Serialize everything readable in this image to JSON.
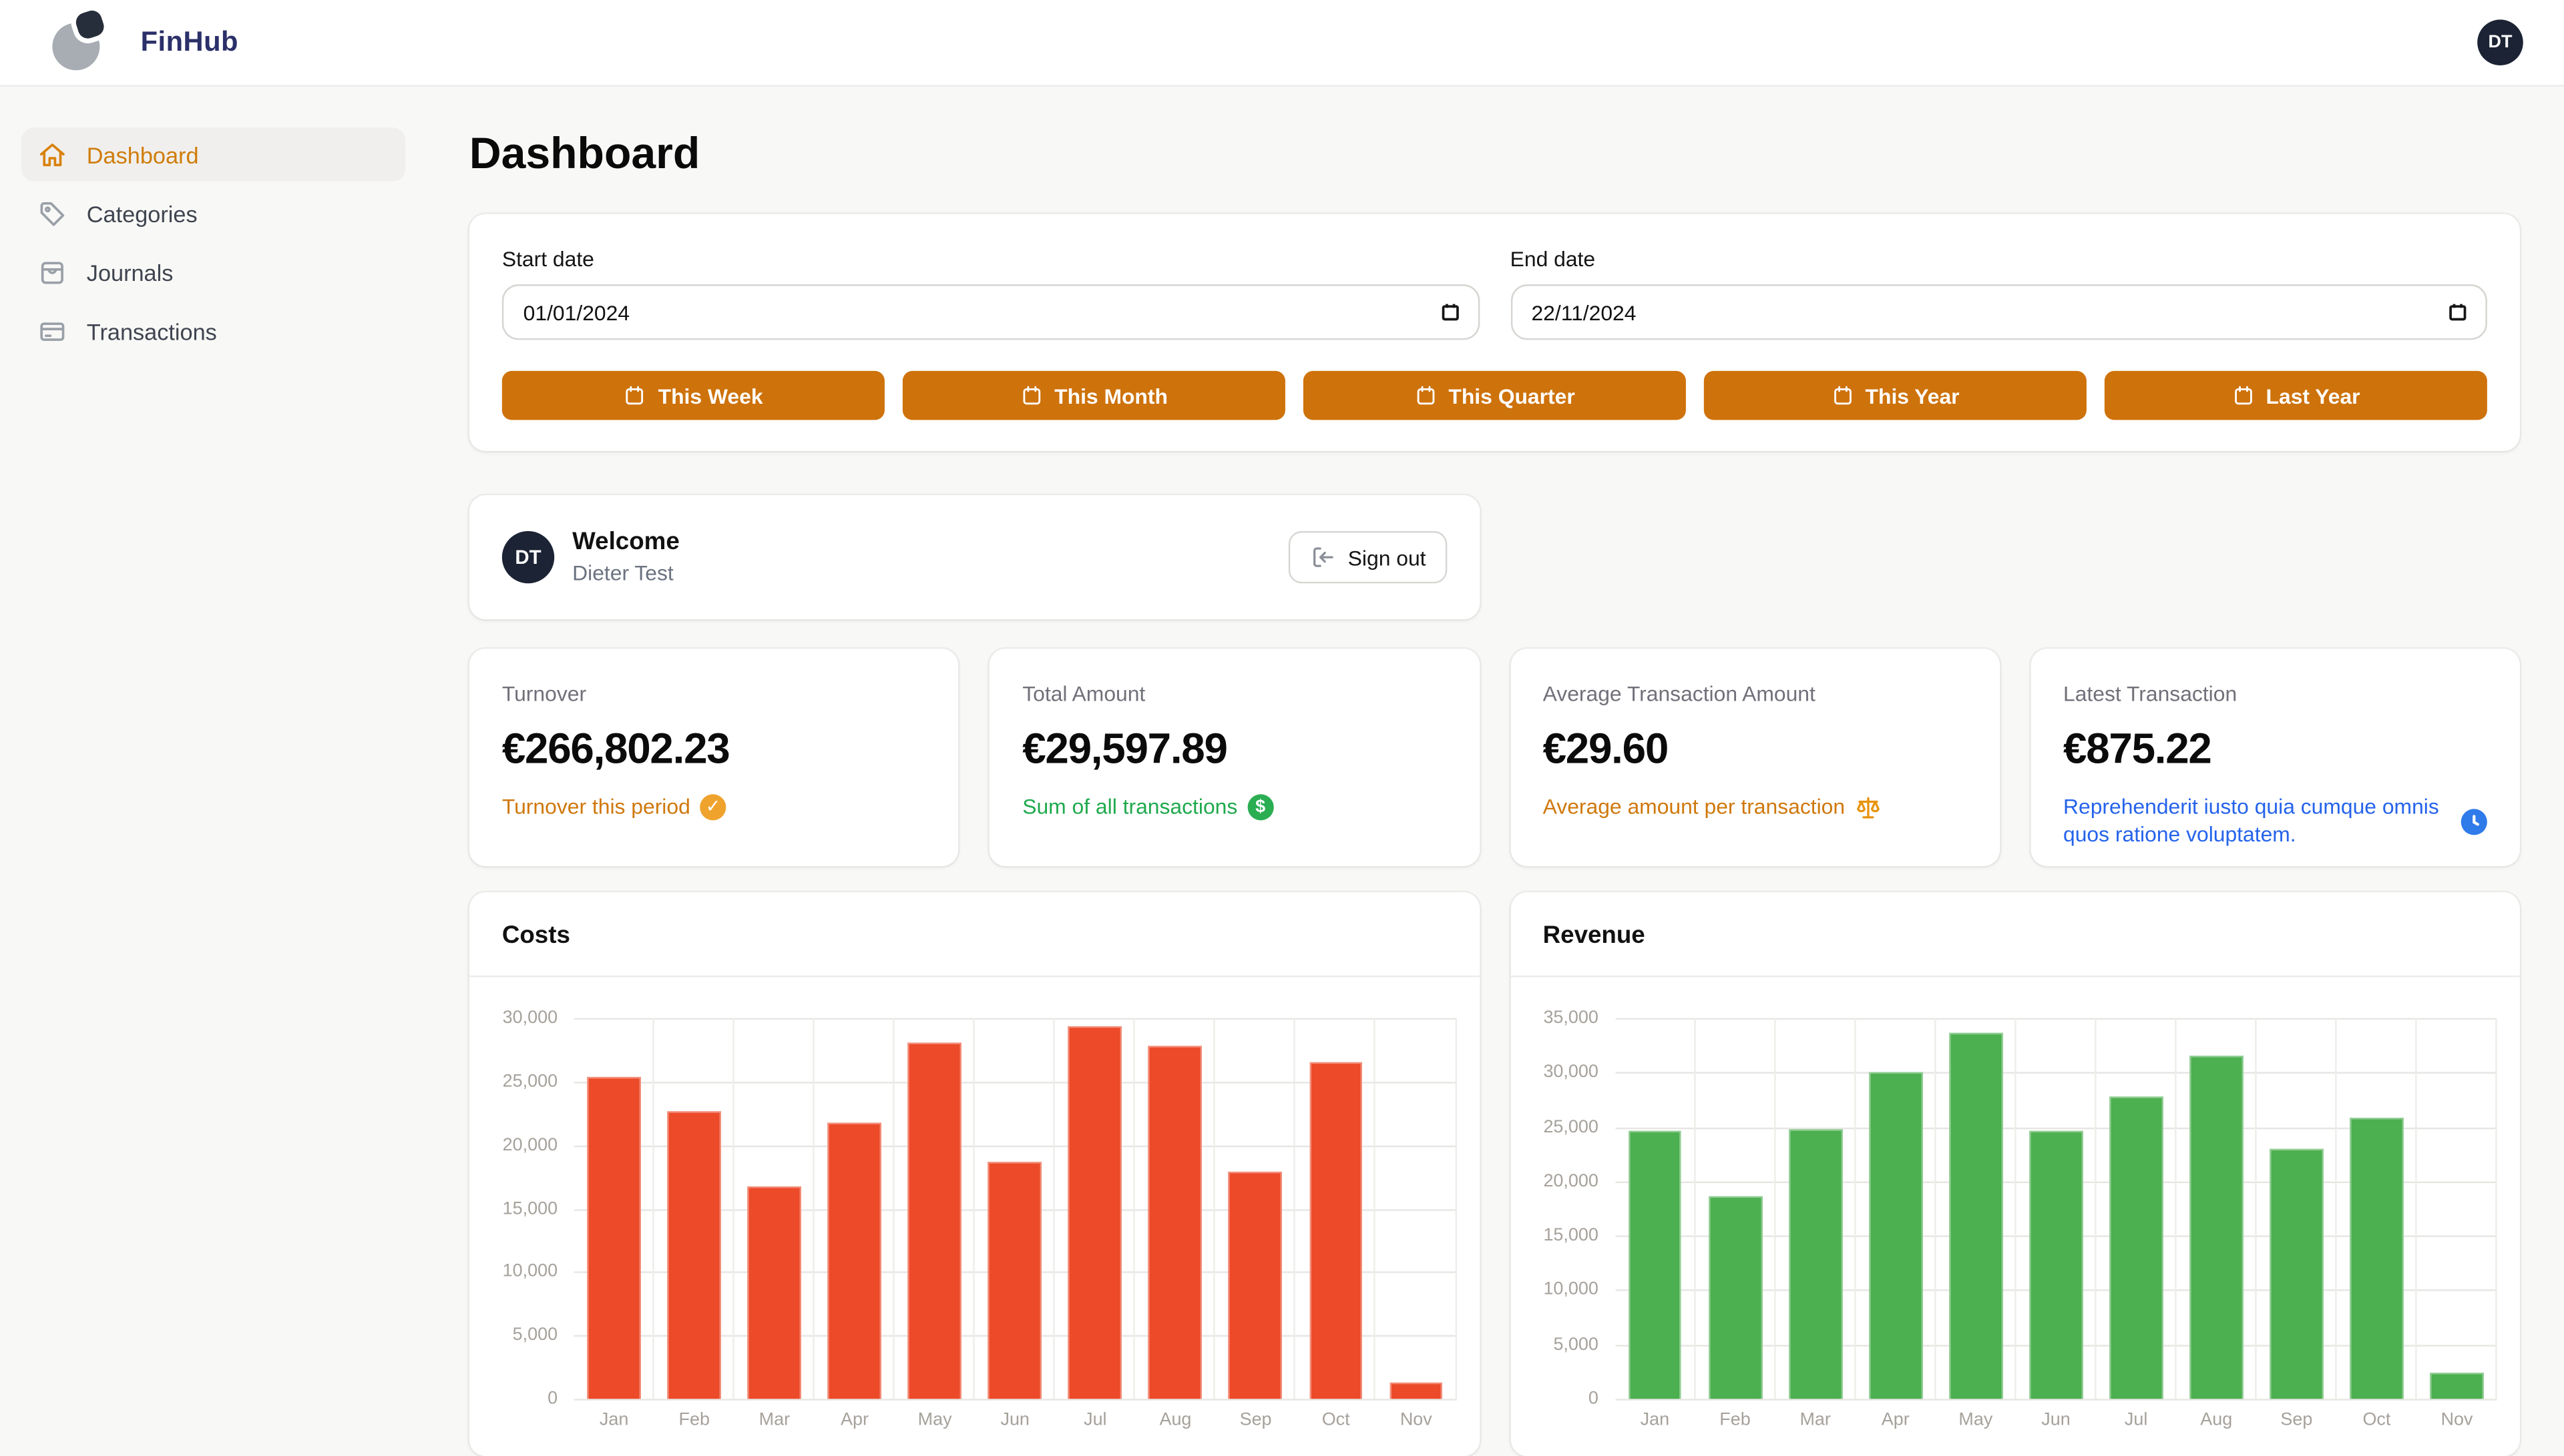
{
  "header": {
    "brand": "FinHub",
    "avatar_initials": "DT"
  },
  "sidebar": {
    "items": [
      {
        "label": "Dashboard",
        "icon": "home",
        "active": true
      },
      {
        "label": "Categories",
        "icon": "tag",
        "active": false
      },
      {
        "label": "Journals",
        "icon": "journal",
        "active": false
      },
      {
        "label": "Transactions",
        "icon": "credit-card",
        "active": false
      }
    ]
  },
  "page": {
    "title": "Dashboard"
  },
  "filters": {
    "start_label": "Start date",
    "start_value": "01/01/2024",
    "end_label": "End date",
    "end_value": "22/11/2024",
    "quick_buttons": [
      "This Week",
      "This Month",
      "This Quarter",
      "This Year",
      "Last Year"
    ]
  },
  "welcome": {
    "title": "Welcome",
    "user_name": "Dieter Test",
    "avatar_initials": "DT",
    "sign_out_label": "Sign out"
  },
  "stats": [
    {
      "label": "Turnover",
      "value": "€266,802.23",
      "sub": "Turnover this period",
      "icon": "check-circle",
      "accent": "#CF780C",
      "icon_color": "#EFA22C"
    },
    {
      "label": "Total Amount",
      "value": "€29,597.89",
      "sub": "Sum of all transactions",
      "icon": "dollar-circle",
      "accent": "#1FA94D",
      "icon_color": "#2BAE52"
    },
    {
      "label": "Average Transaction Amount",
      "value": "€29.60",
      "sub": "Average amount per transaction",
      "icon": "scales",
      "accent": "#CF780C",
      "icon_color": "#E8930F"
    },
    {
      "label": "Latest Transaction",
      "value": "€875.22",
      "sub": "Reprehenderit iusto quia cumque omnis quos ratione voluptatem.",
      "icon": "clock",
      "accent": "#2563EB",
      "icon_color": "#2F7BEA"
    }
  ],
  "chart_data": [
    {
      "type": "bar",
      "title": "Costs",
      "categories": [
        "Jan",
        "Feb",
        "Mar",
        "Apr",
        "May",
        "Jun",
        "Jul",
        "Aug",
        "Sep",
        "Oct",
        "Nov"
      ],
      "values": [
        25400,
        22700,
        16700,
        21700,
        28100,
        18700,
        29300,
        27800,
        17900,
        26500,
        1300
      ],
      "ylim": [
        0,
        30000
      ],
      "ytick_step": 5000,
      "bar_color": "#EC4A29",
      "grid": true,
      "legend": false,
      "xlabel": "",
      "ylabel": ""
    },
    {
      "type": "bar",
      "title": "Revenue",
      "categories": [
        "Jan",
        "Feb",
        "Mar",
        "Apr",
        "May",
        "Jun",
        "Jul",
        "Aug",
        "Sep",
        "Oct",
        "Nov"
      ],
      "values": [
        24600,
        18600,
        24800,
        30100,
        33600,
        24600,
        27800,
        31500,
        23000,
        25800,
        2400
      ],
      "ylim": [
        0,
        35000
      ],
      "ytick_step": 5000,
      "bar_color": "#4CAF50",
      "grid": true,
      "legend": false,
      "xlabel": "",
      "ylabel": ""
    }
  ]
}
